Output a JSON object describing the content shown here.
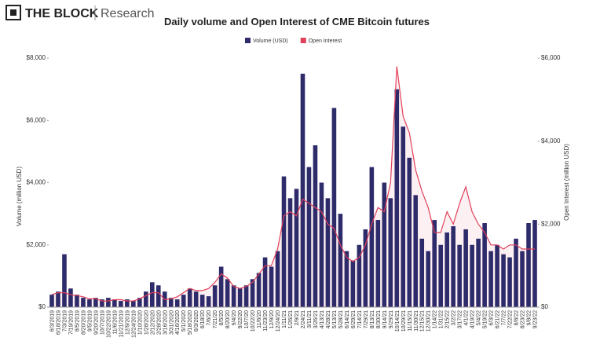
{
  "header": {
    "logo": "THE BLOCK",
    "section": "Research"
  },
  "chart_data": {
    "type": "combo",
    "title": "Daily volume and Open Interest of CME Bitcoin futures",
    "y_label": "Volume (million USD)",
    "y2_label": "Open Interest (million USD)",
    "categories": [
      "6/3/2019",
      "6/18/2019",
      "7/3/2019",
      "7/19/2019",
      "8/5/2019",
      "8/20/2019",
      "9/5/2019",
      "9/20/2019",
      "10/7/2019",
      "10/22/2019",
      "11/6/2019",
      "11/21/2019",
      "12/9/2019",
      "12/24/2019",
      "1/10/2020",
      "1/28/2020",
      "2/12/2020",
      "2/28/2020",
      "3/16/2020",
      "3/31/2020",
      "4/16/2020",
      "5/1/2020",
      "5/18/2020",
      "6/3/2020",
      "6/18/20",
      "7/6/20",
      "7/21/20",
      "8/5/20",
      "8/20/20",
      "9/4/20",
      "9/22/20",
      "10/7/20",
      "10/22/20",
      "11/6/20",
      "11/23/20",
      "12/9/20",
      "12/24/20",
      "1/11/21",
      "1/26/21",
      "2/9/21",
      "2/24/21",
      "3/11/21",
      "3/26/21",
      "4/13/21",
      "4/28/21",
      "5/13/21",
      "5/28/21",
      "6/14/21",
      "6/29/21",
      "7/14/21",
      "7/29/21",
      "8/13/21",
      "8/30/21",
      "9/14/21",
      "9/29/21",
      "10/14/21",
      "10/29/21",
      "11/15/21",
      "11/30/21",
      "12/15/21",
      "12/30/21",
      "1/14/22",
      "1/31/22",
      "2/15/22",
      "3/2/22",
      "3/17/22",
      "4/1/22",
      "4/19/22",
      "5/4/22",
      "5/19/22",
      "6/3/22",
      "6/21/22",
      "7/7/22",
      "7/22/22",
      "8/8/22",
      "8/23/22",
      "9/8/22",
      "9/23/22"
    ],
    "series": [
      {
        "name": "Volume (USD)",
        "type": "bar",
        "color": "#2e2b6b",
        "values": [
          400,
          500,
          1700,
          600,
          400,
          300,
          250,
          300,
          250,
          300,
          250,
          200,
          250,
          200,
          300,
          500,
          800,
          700,
          500,
          300,
          250,
          400,
          600,
          500,
          400,
          350,
          700,
          1300,
          900,
          700,
          600,
          700,
          900,
          1100,
          1600,
          1300,
          1800,
          4200,
          3500,
          3800,
          7500,
          4500,
          5200,
          4000,
          3500,
          6400,
          3000,
          1800,
          1500,
          2000,
          2500,
          4500,
          2800,
          4000,
          3500,
          7000,
          5800,
          4800,
          3600,
          2200,
          1800,
          2800,
          2000,
          2400,
          2600,
          2000,
          2500,
          2000,
          2200,
          2700,
          1800,
          2000,
          1700,
          1600,
          2200,
          1800,
          2700,
          2800
        ]
      },
      {
        "name": "Open Interest",
        "type": "area",
        "axis": "y2",
        "color": "#e0405a",
        "fill": "#fbe3e8",
        "values": [
          300,
          350,
          350,
          300,
          280,
          250,
          200,
          200,
          150,
          150,
          180,
          180,
          150,
          150,
          200,
          280,
          350,
          350,
          180,
          200,
          250,
          350,
          450,
          400,
          400,
          450,
          600,
          800,
          700,
          500,
          450,
          500,
          600,
          800,
          1000,
          1000,
          1400,
          2200,
          2300,
          2200,
          2600,
          2500,
          2400,
          2300,
          2000,
          1900,
          1500,
          1200,
          1100,
          1200,
          1500,
          2000,
          2400,
          2300,
          3000,
          5800,
          4600,
          4200,
          3300,
          2800,
          2400,
          1800,
          1800,
          2300,
          2000,
          2500,
          2900,
          2300,
          2000,
          1800,
          1500,
          1500,
          1400,
          1500,
          1500,
          1400,
          1400,
          1400
        ]
      }
    ],
    "ylim": [
      0,
      8000
    ],
    "yticks": [
      {
        "value": 0,
        "label": "$0"
      },
      {
        "value": 2000,
        "label": "$2,000"
      },
      {
        "value": 4000,
        "label": "$4,000"
      },
      {
        "value": 6000,
        "label": "$6,000"
      },
      {
        "value": 8000,
        "label": "$8,000"
      }
    ],
    "y2lim": [
      0,
      6000
    ],
    "y2ticks": [
      {
        "value": 0,
        "label": "$0"
      },
      {
        "value": 2000,
        "label": "$2,000"
      },
      {
        "value": 4000,
        "label": "$4,000"
      },
      {
        "value": 6000,
        "label": "$6,000"
      }
    ],
    "grid": false
  }
}
